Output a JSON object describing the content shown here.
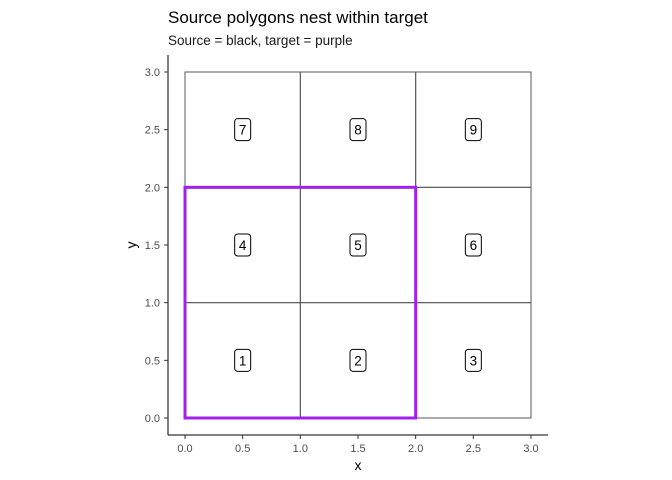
{
  "chart_data": {
    "type": "polygon-grid",
    "title": "Source polygons nest within target",
    "subtitle": "Source = black, target = purple",
    "xlabel": "x",
    "ylabel": "y",
    "xlim": [
      0,
      3
    ],
    "ylim": [
      0,
      3
    ],
    "x_ticks": [
      0,
      0.5,
      1,
      1.5,
      2,
      2.5,
      3
    ],
    "y_ticks": [
      0,
      0.5,
      1,
      1.5,
      2,
      2.5,
      3
    ],
    "x_tick_labels": [
      "0.0",
      "0.5",
      "1.0",
      "1.5",
      "2.0",
      "2.5",
      "3.0"
    ],
    "y_tick_labels": [
      "0.0",
      "0.5",
      "1.0",
      "1.5",
      "2.0",
      "2.5",
      "3.0"
    ],
    "grid": false,
    "source_polygons": [
      {
        "id": "1",
        "xmin": 0,
        "xmax": 1,
        "ymin": 0,
        "ymax": 1
      },
      {
        "id": "2",
        "xmin": 1,
        "xmax": 2,
        "ymin": 0,
        "ymax": 1
      },
      {
        "id": "3",
        "xmin": 2,
        "xmax": 3,
        "ymin": 0,
        "ymax": 1
      },
      {
        "id": "4",
        "xmin": 0,
        "xmax": 1,
        "ymin": 1,
        "ymax": 2
      },
      {
        "id": "5",
        "xmin": 1,
        "xmax": 2,
        "ymin": 1,
        "ymax": 2
      },
      {
        "id": "6",
        "xmin": 2,
        "xmax": 3,
        "ymin": 1,
        "ymax": 2
      },
      {
        "id": "7",
        "xmin": 0,
        "xmax": 1,
        "ymin": 2,
        "ymax": 3
      },
      {
        "id": "8",
        "xmin": 1,
        "xmax": 2,
        "ymin": 2,
        "ymax": 3
      },
      {
        "id": "9",
        "xmin": 2,
        "xmax": 3,
        "ymin": 2,
        "ymax": 3
      }
    ],
    "labels": [
      {
        "text": "1",
        "x": 0.5,
        "y": 0.5
      },
      {
        "text": "2",
        "x": 1.5,
        "y": 0.5
      },
      {
        "text": "3",
        "x": 2.5,
        "y": 0.5
      },
      {
        "text": "4",
        "x": 0.5,
        "y": 1.5
      },
      {
        "text": "5",
        "x": 1.5,
        "y": 1.5
      },
      {
        "text": "6",
        "x": 2.5,
        "y": 1.5
      },
      {
        "text": "7",
        "x": 0.5,
        "y": 2.5
      },
      {
        "text": "8",
        "x": 1.5,
        "y": 2.5
      },
      {
        "text": "9",
        "x": 2.5,
        "y": 2.5
      }
    ],
    "target_polygon": {
      "xmin": 0,
      "xmax": 2,
      "ymin": 0,
      "ymax": 2
    },
    "colors": {
      "source": "#595959",
      "target": "#a020f0",
      "axis": "#000000",
      "tick_text": "#4d4d4d"
    }
  }
}
